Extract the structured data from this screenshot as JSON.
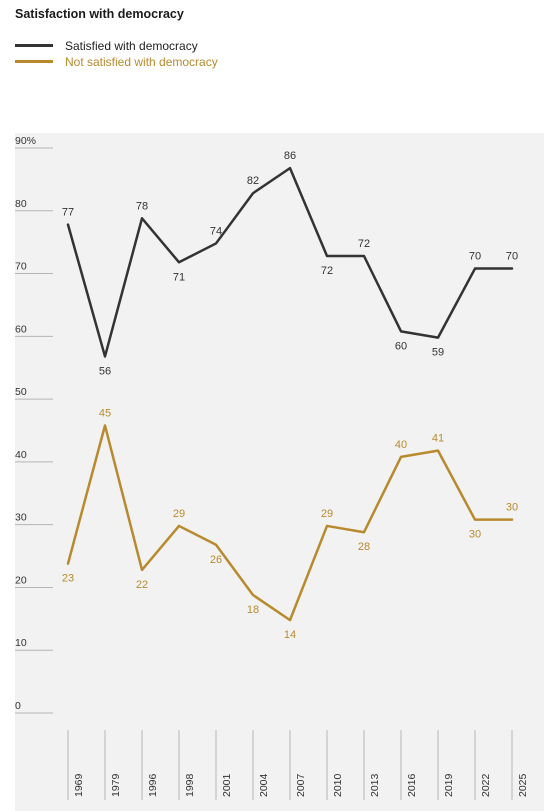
{
  "title": "Satisfaction with democracy",
  "colors": {
    "satisfied": "#333333",
    "not_satisfied": "#b88a2e",
    "background": "#f2f2f2",
    "gridline": "#b5b5b5",
    "text": "#333333"
  },
  "chart_data": {
    "type": "line",
    "title": "Satisfaction with democracy",
    "xlabel": "",
    "ylabel": "",
    "ylim": [
      0,
      90
    ],
    "y_ticks": [
      "0",
      "10",
      "20",
      "30",
      "40",
      "50",
      "60",
      "70",
      "80",
      "90%"
    ],
    "x": [
      "1969",
      "1979",
      "1996",
      "1998",
      "2001",
      "2004",
      "2007",
      "2010",
      "2013",
      "2016",
      "2019",
      "2022",
      "2025"
    ],
    "legend_position": "top-left",
    "series": [
      {
        "name": "Satisfied with democracy",
        "values": [
          77,
          56,
          78,
          71,
          74,
          82,
          86,
          72,
          72,
          60,
          59,
          70,
          70
        ]
      },
      {
        "name": "Not satisfied with democracy",
        "values": [
          23,
          45,
          22,
          29,
          26,
          18,
          14,
          29,
          28,
          40,
          41,
          30,
          30
        ]
      }
    ]
  }
}
